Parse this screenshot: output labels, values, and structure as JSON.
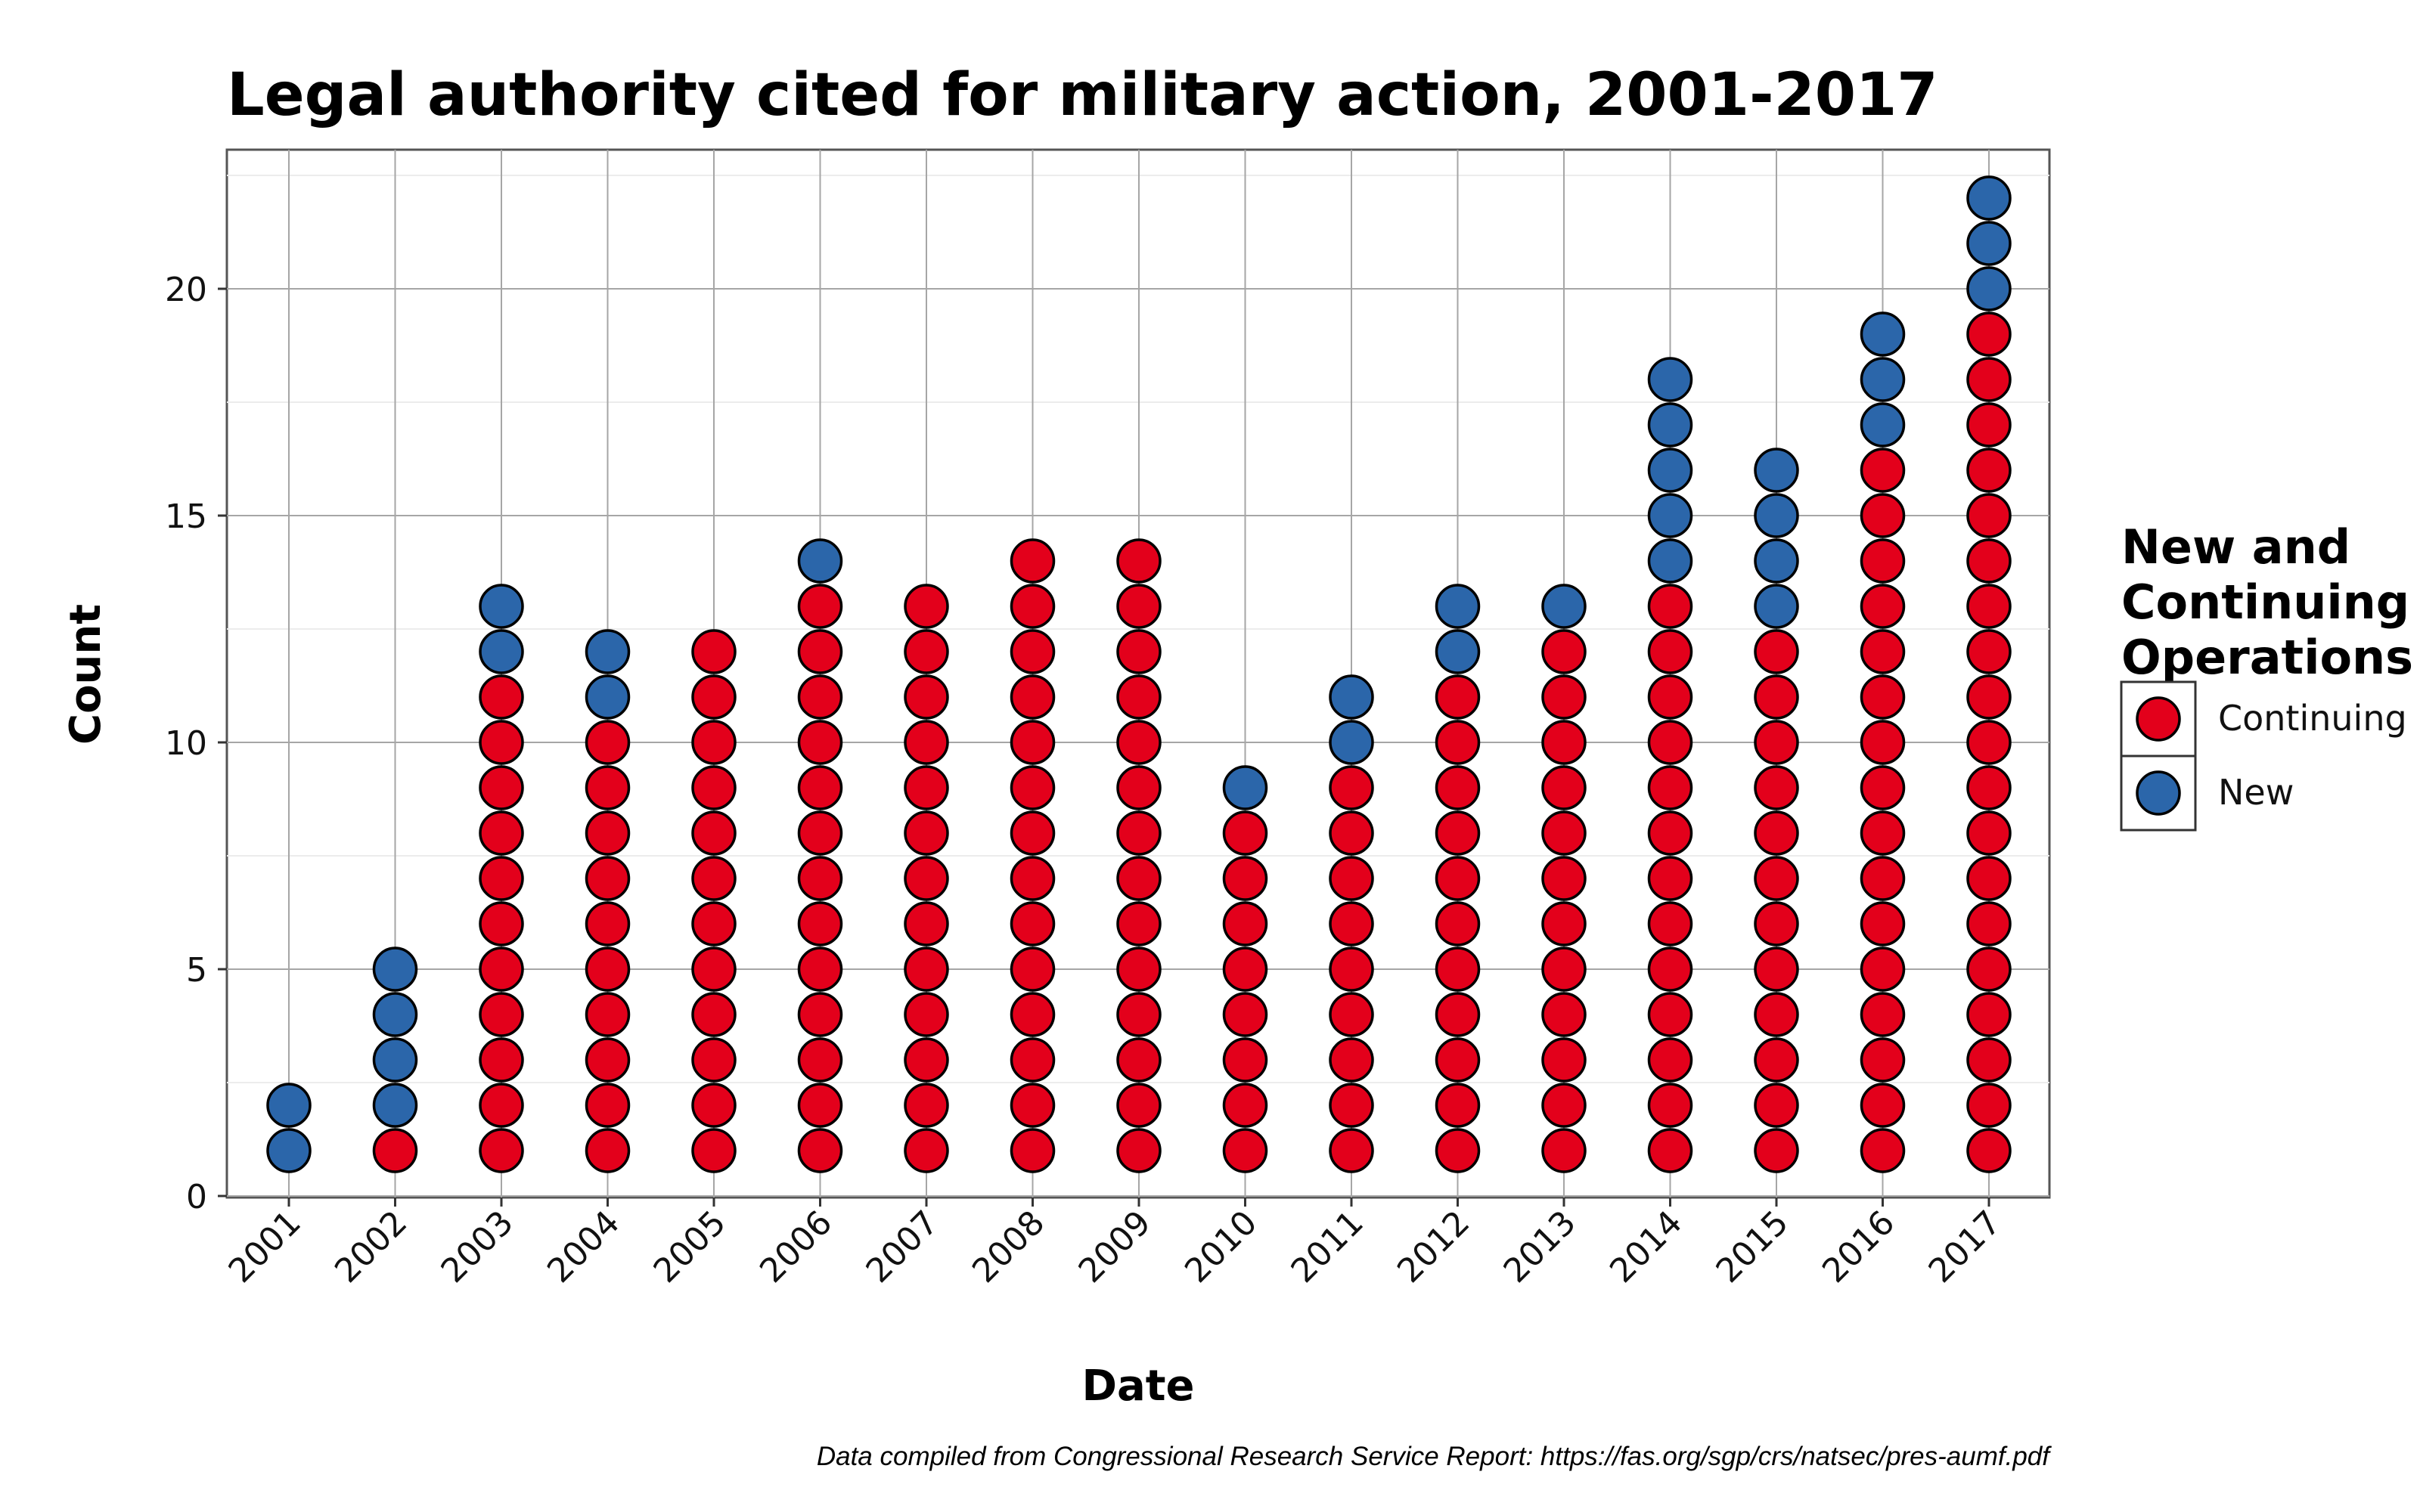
{
  "chart_data": {
    "type": "dot",
    "title": "Legal authority cited for military action, 2001-2017",
    "xlabel": "Date",
    "ylabel": "Count",
    "categories": [
      "2001",
      "2002",
      "2003",
      "2004",
      "2005",
      "2006",
      "2007",
      "2008",
      "2009",
      "2010",
      "2011",
      "2012",
      "2013",
      "2014",
      "2015",
      "2016",
      "2017"
    ],
    "series": [
      {
        "name": "Continuing",
        "color": "#e3001b",
        "values": [
          0,
          1,
          11,
          10,
          12,
          13,
          13,
          14,
          14,
          8,
          9,
          11,
          12,
          13,
          12,
          16,
          19
        ]
      },
      {
        "name": "New",
        "color": "#2b66aa",
        "values": [
          2,
          4,
          2,
          2,
          0,
          1,
          0,
          0,
          0,
          1,
          2,
          2,
          1,
          5,
          4,
          3,
          3
        ]
      }
    ],
    "ylim": [
      0,
      23
    ],
    "yticks": [
      0,
      5,
      10,
      15,
      20
    ],
    "grid": true,
    "legend": {
      "title_lines": [
        "New and",
        "Continuing",
        "Operations"
      ],
      "placement": "right"
    },
    "caption": "Data compiled from Congressional Research Service Report: https://fas.org/sgp/crs/natsec/pres-aumf.pdf"
  }
}
